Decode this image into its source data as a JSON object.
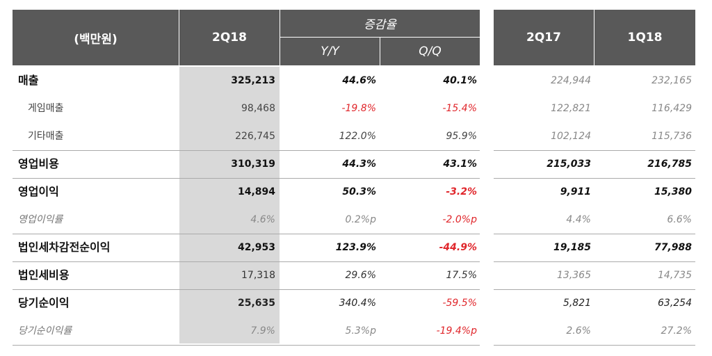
{
  "header": {
    "label": "(백만원)",
    "current": "2Q18",
    "change": "증감율",
    "yy": "Y/Y",
    "qq": "Q/Q",
    "prev_year": "2Q17",
    "prev_quarter": "1Q18"
  },
  "rows": [
    [
      "매출",
      "325,213",
      "44.6%",
      "40.1%",
      "224,944",
      "232,165"
    ],
    [
      "게임매출",
      "98,468",
      "-19.8%",
      "-15.4%",
      "122,821",
      "116,429"
    ],
    [
      "기타매출",
      "226,745",
      "122.0%",
      "95.9%",
      "102,124",
      "115,736"
    ],
    [
      "영업비용",
      "310,319",
      "44.3%",
      "43.1%",
      "215,033",
      "216,785"
    ],
    [
      "영업이익",
      "14,894",
      "50.3%",
      "-3.2%",
      "9,911",
      "15,380"
    ],
    [
      "영업이익률",
      "4.6%",
      "0.2%p",
      "-2.0%p",
      "4.4%",
      "6.6%"
    ],
    [
      "법인세차감전순이익",
      "42,953",
      "123.9%",
      "-44.9%",
      "19,185",
      "77,988"
    ],
    [
      "법인세비용",
      "17,318",
      "29.6%",
      "17.5%",
      "13,365",
      "14,735"
    ],
    [
      "당기순이익",
      "25,635",
      "340.4%",
      "-59.5%",
      "5,821",
      "63,254"
    ],
    [
      "당기순이익률",
      "7.9%",
      "5.3%p",
      "-19.4%p",
      "2.6%",
      "27.2%"
    ]
  ]
}
